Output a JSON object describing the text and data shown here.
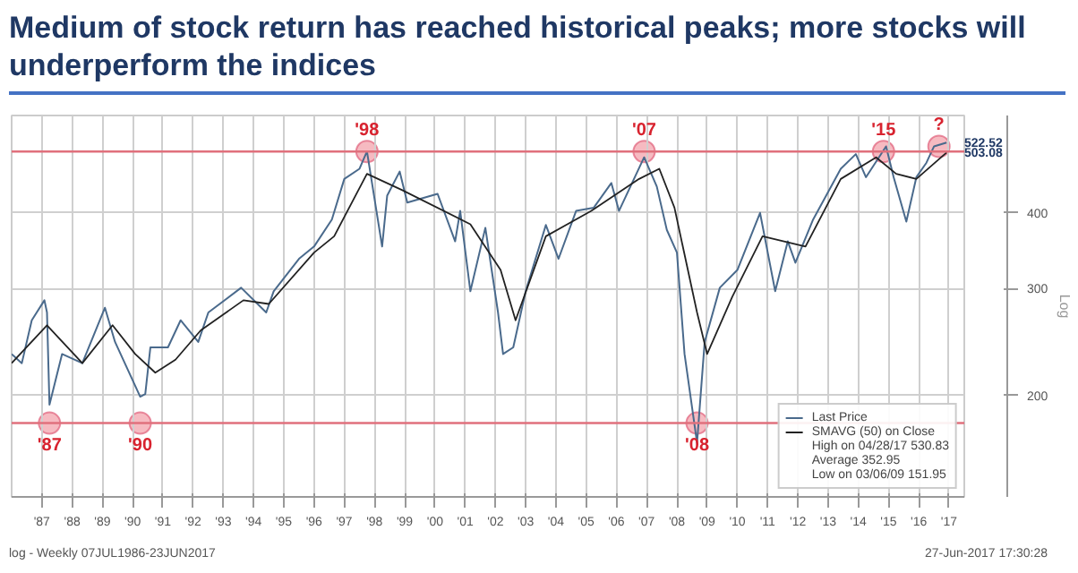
{
  "chart_data": {
    "type": "line",
    "title": "Medium of stock return has reached historical peaks; more stocks will underperform the indices",
    "ylabel": "Log",
    "log": "y",
    "grid": true,
    "legend": "bottom right",
    "line_style": "solid",
    "marker": "none",
    "xlim": [
      "1986-07-01",
      "2018-01-01"
    ],
    "ylim": [
      136,
      579
    ],
    "yticks": [
      200,
      300,
      400
    ],
    "xticks": [
      {
        "value": "1987-07-01",
        "label": "'87"
      },
      {
        "value": "1988-07-01",
        "label": "'88"
      },
      {
        "value": "1989-07-01",
        "label": "'89"
      },
      {
        "value": "1990-07-01",
        "label": "'90"
      },
      {
        "value": "1991-07-01",
        "label": "'91"
      },
      {
        "value": "1992-07-01",
        "label": "'92"
      },
      {
        "value": "1993-07-01",
        "label": "'93"
      },
      {
        "value": "1994-07-01",
        "label": "'94"
      },
      {
        "value": "1995-07-01",
        "label": "'95"
      },
      {
        "value": "1996-07-01",
        "label": "'96"
      },
      {
        "value": "1997-07-01",
        "label": "'97"
      },
      {
        "value": "1998-07-01",
        "label": "'98"
      },
      {
        "value": "1999-07-01",
        "label": "'99"
      },
      {
        "value": "2000-07-01",
        "label": "'00"
      },
      {
        "value": "2001-07-01",
        "label": "'01"
      },
      {
        "value": "2002-07-01",
        "label": "'02"
      },
      {
        "value": "2003-07-01",
        "label": "'03"
      },
      {
        "value": "2004-07-01",
        "label": "'04"
      },
      {
        "value": "2005-07-01",
        "label": "'05"
      },
      {
        "value": "2006-07-01",
        "label": "'06"
      },
      {
        "value": "2007-07-01",
        "label": "'07"
      },
      {
        "value": "2008-07-01",
        "label": "'08"
      },
      {
        "value": "2009-07-01",
        "label": "'09"
      },
      {
        "value": "2010-07-01",
        "label": "'10"
      },
      {
        "value": "2011-07-01",
        "label": "'11"
      },
      {
        "value": "2012-07-01",
        "label": "'12"
      },
      {
        "value": "2013-07-01",
        "label": "'13"
      },
      {
        "value": "2014-07-01",
        "label": "'14"
      },
      {
        "value": "2015-07-01",
        "label": "'15"
      },
      {
        "value": "2016-07-01",
        "label": "'16"
      },
      {
        "value": "2017-07-01",
        "label": "'17"
      }
    ],
    "series": [
      {
        "name": "Last Price",
        "color": "#4a6a8c",
        "x": [
          "1986-07",
          "1986-11",
          "1987-03",
          "1987-08",
          "1987-09",
          "1987-10",
          "1988-03",
          "1988-11",
          "1989-08",
          "1989-12",
          "1990-10",
          "1990-12",
          "1991-02",
          "1991-09",
          "1992-02",
          "1992-09",
          "1993-01",
          "1994-02",
          "1994-12",
          "1995-03",
          "1996-01",
          "1996-07",
          "1997-02",
          "1997-07",
          "1998-01",
          "1998-04",
          "1998-10",
          "1998-12",
          "1999-05",
          "1999-08",
          "2000-08",
          "2001-03",
          "2001-05",
          "2001-09",
          "2002-03",
          "2002-08",
          "2002-10",
          "2003-02",
          "2003-07",
          "2004-03",
          "2004-08",
          "2005-03",
          "2005-10",
          "2006-05",
          "2006-08",
          "2007-06",
          "2007-11",
          "2008-03",
          "2008-07",
          "2008-10",
          "2009-03",
          "2009-06",
          "2009-12",
          "2010-07",
          "2011-04",
          "2011-10",
          "2012-03",
          "2012-06",
          "2013-01",
          "2013-12",
          "2014-06",
          "2014-10",
          "2015-06",
          "2015-09",
          "2016-02",
          "2016-06",
          "2016-10",
          "2017-01",
          "2017-06"
        ],
        "values": [
          234,
          226,
          266,
          287,
          274,
          193,
          234,
          226,
          279,
          245,
          199,
          201,
          240,
          240,
          266,
          245,
          274,
          301,
          274,
          297,
          336,
          352,
          390,
          455,
          473,
          505,
          352,
          427,
          468,
          416,
          430,
          359,
          403,
          297,
          378,
          274,
          234,
          240,
          297,
          382,
          336,
          403,
          408,
          448,
          403,
          494,
          442,
          375,
          344,
          234,
          167,
          245,
          301,
          322,
          400,
          297,
          359,
          331,
          390,
          473,
          500,
          458,
          515,
          458,
          387,
          458,
          484,
          515,
          522.52
        ],
        "value_labels": [
          null,
          null,
          null,
          null,
          null,
          null,
          null,
          null,
          null,
          null,
          null,
          null,
          null,
          null,
          null,
          null,
          null,
          null,
          null,
          null,
          null,
          null,
          null,
          null,
          null,
          null,
          null,
          null,
          null,
          null,
          null,
          null,
          null,
          null,
          null,
          null,
          null,
          null,
          null,
          null,
          null,
          null,
          null,
          null,
          null,
          null,
          null,
          null,
          null,
          null,
          null,
          null,
          null,
          null,
          null,
          null,
          null,
          null,
          null,
          null,
          null,
          null,
          null,
          null,
          null,
          null,
          null,
          null,
          "522.52"
        ]
      },
      {
        "name": "SMAVG (50) on Close",
        "color": "#222222",
        "x": [
          "1986-07",
          "1987-09",
          "1988-11",
          "1989-11",
          "1990-08",
          "1991-04",
          "1991-12",
          "1992-10",
          "1994-03",
          "1995-01",
          "1996-07",
          "1997-03",
          "1998-04",
          "1999-06",
          "2001-09",
          "2002-09",
          "2003-03",
          "2004-03",
          "2005-09",
          "2007-04",
          "2007-12",
          "2008-06",
          "2009-03",
          "2009-07",
          "2010-05",
          "2011-05",
          "2012-10",
          "2013-12",
          "2015-02",
          "2015-10",
          "2016-06",
          "2017-06"
        ],
        "values": [
          226,
          261,
          226,
          261,
          234,
          218,
          229,
          256,
          287,
          283,
          344,
          366,
          464,
          436,
          383,
          322,
          266,
          366,
          403,
          455,
          473,
          408,
          274,
          234,
          291,
          366,
          352,
          455,
          494,
          464,
          455,
          503.08
        ],
        "value_labels": [
          null,
          null,
          null,
          null,
          null,
          null,
          null,
          null,
          null,
          null,
          null,
          null,
          null,
          null,
          null,
          null,
          null,
          null,
          null,
          null,
          null,
          null,
          null,
          null,
          null,
          null,
          null,
          null,
          null,
          null,
          null,
          "503.08"
        ]
      }
    ],
    "ref_lines": [
      {
        "axis": "y",
        "value": 505,
        "color": "#e0707c"
      },
      {
        "axis": "y",
        "value": 180,
        "color": "#e0707c"
      }
    ],
    "annotations": [
      {
        "text": "'87",
        "x": "1987-10",
        "y": 180
      },
      {
        "text": "'90",
        "x": "1990-10",
        "y": 180
      },
      {
        "text": "'98",
        "x": "1998-04",
        "y": 505
      },
      {
        "text": "'07",
        "x": "2007-06",
        "y": 505
      },
      {
        "text": "'08",
        "x": "2009-03",
        "y": 180
      },
      {
        "text": "'15",
        "x": "2015-05",
        "y": 505
      },
      {
        "text": "?",
        "x": "2017-03",
        "y": 515
      },
      "High on 04/28/17 530.83",
      "Average 352.95",
      "Low on 03/06/09 151.95",
      "log - Weekly 07JUL1986-23JUN2017",
      "27-Jun-2017 17:30:28"
    ]
  }
}
